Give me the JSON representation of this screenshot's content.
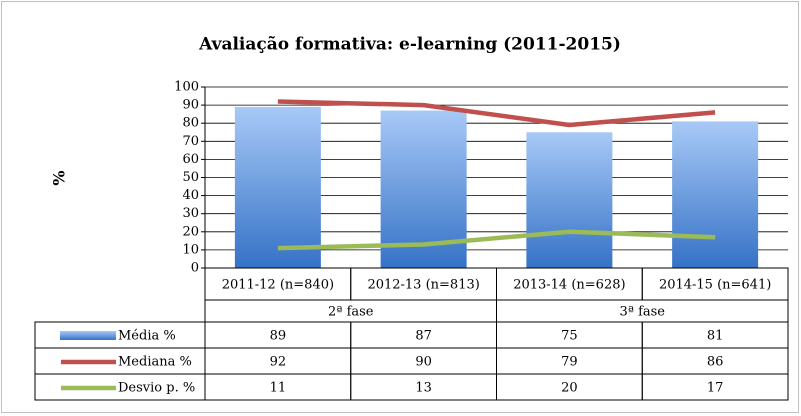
{
  "chart_data": {
    "type": "bar",
    "title": "Avaliação formativa: e-learning (2011-2015)",
    "y_label": "%",
    "categories": [
      "2011-12 (n=840)",
      "2012-13 (n=813)",
      "2013-14 (n=628)",
      "2014-15 (n=641)"
    ],
    "category_groups": [
      "2ª fase",
      "2ª fase",
      "3ª fase",
      "3ª fase"
    ],
    "series": [
      {
        "name": "Média %",
        "type": "bar",
        "color": "#4f81d6",
        "values": [
          89,
          87,
          75,
          81
        ]
      },
      {
        "name": "Mediana %",
        "type": "line",
        "color": "#c0504d",
        "values": [
          92,
          90,
          79,
          86
        ]
      },
      {
        "name": "Desvio p. %",
        "type": "line",
        "color": "#9bbb59",
        "values": [
          11,
          13,
          20,
          17
        ]
      }
    ],
    "ylim": [
      0,
      100
    ],
    "yticks": [
      0,
      10,
      20,
      30,
      40,
      50,
      60,
      70,
      80,
      90,
      100
    ],
    "grid": true,
    "data_table": true
  }
}
